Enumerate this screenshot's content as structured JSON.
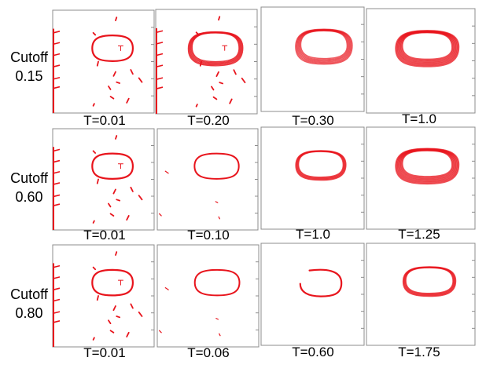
{
  "figure": {
    "line_color": "#e8141c",
    "rows": [
      {
        "label_line1": "Cutoff",
        "label_line2": "0.15",
        "panels": [
          {
            "t_label": "T=0.01",
            "style": "noisy"
          },
          {
            "t_label": "T=0.20",
            "style": "noisy-thick"
          },
          {
            "t_label": "T=0.30",
            "style": "ring-thick"
          },
          {
            "t_label": "T=1.0",
            "style": "ring-heavy"
          }
        ]
      },
      {
        "label_line1": "Cutoff",
        "label_line2": "0.60",
        "panels": [
          {
            "t_label": "T=0.01",
            "style": "noisy"
          },
          {
            "t_label": "T=0.10",
            "style": "sparse-thin"
          },
          {
            "t_label": "T=1.0",
            "style": "ring-medium"
          },
          {
            "t_label": "T=1.25",
            "style": "ring-heavy"
          }
        ]
      },
      {
        "label_line1": "Cutoff",
        "label_line2": "0.80",
        "panels": [
          {
            "t_label": "T=0.01",
            "style": "noisy"
          },
          {
            "t_label": "T=0.06",
            "style": "sparse-thin"
          },
          {
            "t_label": "T=0.60",
            "style": "ring-open"
          },
          {
            "t_label": "T=1.75",
            "style": "ring-medium"
          }
        ]
      }
    ]
  }
}
